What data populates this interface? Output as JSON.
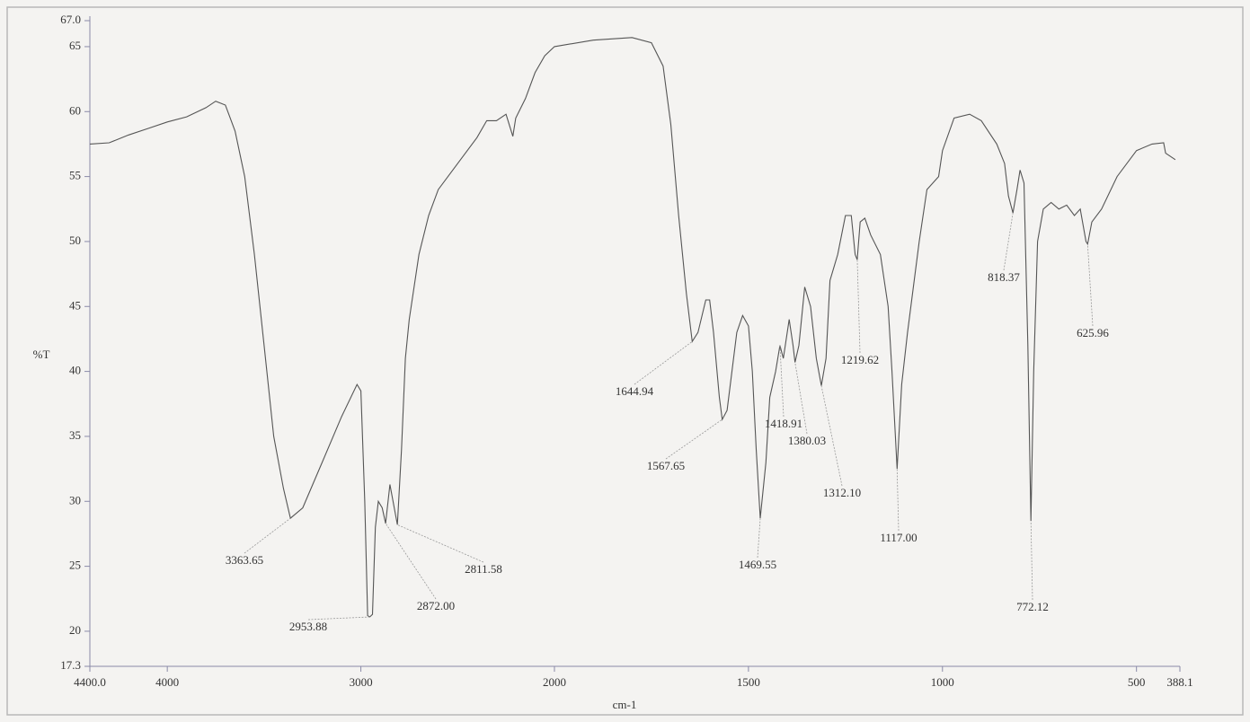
{
  "chart_data": {
    "type": "line",
    "xlabel": "cm-1",
    "ylabel": "%T",
    "color": "#555555",
    "xlim": [
      4400.0,
      388.1
    ],
    "x_scale_break": 2000,
    "ylim": [
      17.3,
      67.0
    ],
    "xticks": [
      {
        "value": 4400.0,
        "label": "4400.0"
      },
      4000,
      3000,
      2000,
      1500,
      1000,
      500,
      388.1
    ],
    "yticks": [
      17.3,
      20,
      25,
      30,
      35,
      40,
      45,
      50,
      55,
      60,
      65,
      {
        "value": 67.0,
        "label": "67.0"
      }
    ],
    "x": [
      4400,
      4300,
      4200,
      4100,
      4000,
      3900,
      3800,
      3750,
      3700,
      3650,
      3600,
      3550,
      3500,
      3450,
      3400,
      3363.65,
      3300,
      3200,
      3100,
      3020,
      3000,
      2980,
      2965,
      2953.88,
      2940,
      2925,
      2910,
      2890,
      2872,
      2850,
      2811.58,
      2790,
      2770,
      2750,
      2700,
      2650,
      2600,
      2500,
      2400,
      2350,
      2300,
      2250,
      2215,
      2200,
      2150,
      2100,
      2050,
      2000,
      1900,
      1800,
      1750,
      1720,
      1700,
      1680,
      1660,
      1644.94,
      1630,
      1610,
      1600,
      1590,
      1575,
      1567.65,
      1555,
      1530,
      1515,
      1500,
      1490,
      1480,
      1469.55,
      1455,
      1445,
      1430,
      1418.91,
      1410,
      1395,
      1385,
      1380.03,
      1370,
      1355,
      1340,
      1325,
      1312.1,
      1300,
      1290,
      1270,
      1250,
      1235,
      1225,
      1219.62,
      1212,
      1200,
      1185,
      1160,
      1140,
      1130,
      1117,
      1105,
      1090,
      1060,
      1040,
      1010,
      1000,
      970,
      930,
      900,
      860,
      840,
      830,
      818.37,
      808,
      800,
      790,
      780,
      772.12,
      765,
      755,
      740,
      720,
      700,
      680,
      660,
      645,
      630,
      625.96,
      615,
      590,
      550,
      500,
      460,
      430,
      425,
      400
    ],
    "values": [
      57.5,
      57.6,
      58.2,
      58.7,
      59.2,
      59.6,
      60.3,
      60.8,
      60.5,
      58.5,
      55,
      49,
      42,
      35,
      31,
      28.7,
      29.5,
      33,
      36.5,
      39,
      38.5,
      30,
      21.2,
      21.1,
      21.3,
      28,
      30,
      29.5,
      28.3,
      31.3,
      28.2,
      34,
      41,
      44,
      49,
      52,
      54,
      56,
      58,
      59.3,
      59.3,
      59.8,
      58.1,
      59.5,
      61,
      63,
      64.3,
      65,
      65.5,
      65.7,
      65.3,
      63.5,
      59,
      52,
      46,
      42.3,
      43,
      45.5,
      45.5,
      43,
      38,
      36.3,
      37,
      43,
      44.3,
      43.5,
      40,
      34,
      28.7,
      33,
      38,
      40,
      42,
      41,
      44,
      42,
      40.7,
      42,
      46.5,
      45,
      41,
      38.9,
      41,
      47,
      49,
      52,
      52,
      49,
      48.6,
      51.5,
      51.8,
      50.5,
      49,
      45,
      40,
      32.5,
      39,
      43,
      50,
      54,
      55,
      57,
      59.5,
      59.8,
      59.3,
      57.5,
      56,
      53.5,
      52.2,
      54,
      55.5,
      54.5,
      42,
      28.5,
      40,
      50,
      52.5,
      53,
      52.5,
      52.8,
      52,
      52.5,
      50,
      49.8,
      51.5,
      52.5,
      55,
      57,
      57.5,
      57.6,
      56.8,
      56.3
    ],
    "annotations": [
      {
        "label": "3363.65",
        "x": 3363.65,
        "y": 28.7
      },
      {
        "label": "2953.88",
        "x": 2953.88,
        "y": 21.1
      },
      {
        "label": "2872.00",
        "x": 2872,
        "y": 28.3
      },
      {
        "label": "2811.58",
        "x": 2811.58,
        "y": 28.2
      },
      {
        "label": "1644.94",
        "x": 1644.94,
        "y": 42.3
      },
      {
        "label": "1567.65",
        "x": 1567.65,
        "y": 36.3
      },
      {
        "label": "1469.55",
        "x": 1469.55,
        "y": 28.7
      },
      {
        "label": "1418.91",
        "x": 1418.91,
        "y": 42
      },
      {
        "label": "1380.03",
        "x": 1380.03,
        "y": 40.7
      },
      {
        "label": "1312.10",
        "x": 1312.1,
        "y": 38.9
      },
      {
        "label": "1219.62",
        "x": 1219.62,
        "y": 48.6
      },
      {
        "label": "1117.00",
        "x": 1117,
        "y": 32.5
      },
      {
        "label": "818.37",
        "x": 818.37,
        "y": 52.2
      },
      {
        "label": "772.12",
        "x": 772.12,
        "y": 28.5
      },
      {
        "label": "625.96",
        "x": 625.96,
        "y": 49.8
      }
    ]
  }
}
